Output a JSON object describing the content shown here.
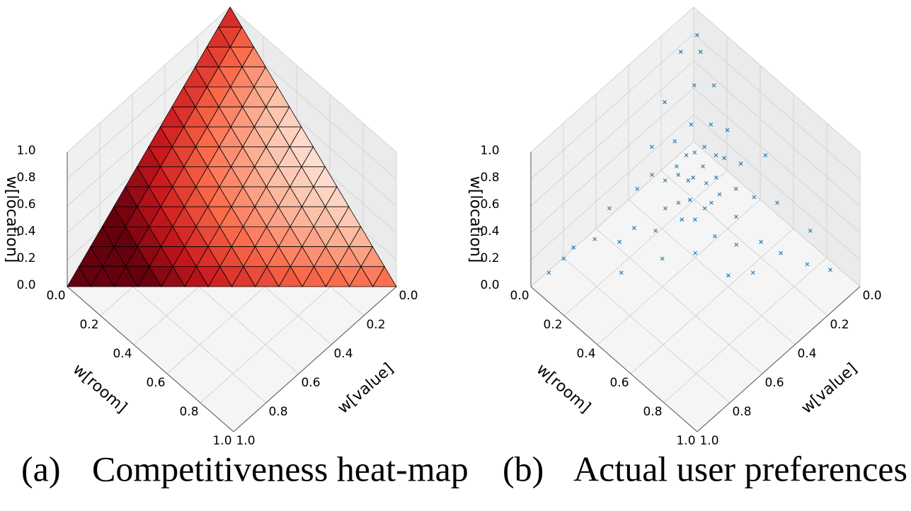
{
  "chart_data": [
    {
      "type": "surface",
      "label": "(a)",
      "caption": "Competitiveness heat-map",
      "xlabel": "w[room]",
      "ylabel": "w[value]",
      "zlabel": "w[location]",
      "xlim": [
        0,
        1
      ],
      "ylim": [
        0,
        1
      ],
      "zlim": [
        0,
        1
      ],
      "xticks": [
        {
          "value": 0,
          "label": "0.0"
        },
        0.2,
        0.4,
        0.6,
        0.8,
        {
          "value": 1,
          "label": "1.0"
        }
      ],
      "yticks": [
        {
          "value": 0,
          "label": "0.0"
        },
        0.2,
        0.4,
        0.6,
        0.8,
        {
          "value": 1,
          "label": "1.0"
        }
      ],
      "zticks": [
        {
          "value": 0,
          "label": "0.0"
        },
        0.2,
        0.4,
        0.6,
        0.8,
        {
          "value": 1,
          "label": "1.0"
        }
      ],
      "subdivisions": 14,
      "colormap": "Reds",
      "edgecolor": "#000000",
      "grid": true
    },
    {
      "type": "scatter3d",
      "label": "(b)",
      "caption": "Actual user preferences",
      "xlabel": "w[room]",
      "ylabel": "w[value]",
      "zlabel": "w[location]",
      "xlim": [
        0,
        1
      ],
      "ylim": [
        0,
        1
      ],
      "zlim": [
        0,
        1
      ],
      "xticks": [
        {
          "value": 0,
          "label": "0.0"
        },
        0.2,
        0.4,
        0.6,
        0.8,
        {
          "value": 1,
          "label": "1.0"
        }
      ],
      "yticks": [
        {
          "value": 0,
          "label": "0.0"
        },
        0.2,
        0.4,
        0.6,
        0.8,
        {
          "value": 1,
          "label": "1.0"
        }
      ],
      "zticks": [
        {
          "value": 0,
          "label": "0.0"
        },
        0.2,
        0.4,
        0.6,
        0.8,
        {
          "value": 1,
          "label": "1.0"
        }
      ],
      "color": "#1f77b4",
      "marker": "x",
      "grid": true,
      "x": [
        0.3,
        0.25,
        0.35,
        0.28,
        0.4,
        0.22,
        0.33,
        0.18,
        0.45,
        0.27,
        0.36,
        0.2,
        0.5,
        0.15,
        0.31,
        0.38,
        0.24,
        0.42,
        0.12,
        0.29,
        0.55,
        0.1,
        0.34,
        0.26,
        0.47,
        0.08,
        0.6,
        0.21,
        0.37,
        0.32,
        0.14,
        0.62,
        0.06,
        0.44,
        0.23,
        0.39,
        0.17,
        0.52,
        0.28,
        0.33,
        0.7,
        0.05,
        0.11,
        0.19,
        0.75,
        0.8,
        0.04,
        0.1,
        0.06,
        0.35,
        0.58,
        0.25,
        0.48,
        0.2,
        0.65,
        0.03,
        0.88,
        0.3,
        0.26,
        0.41
      ],
      "y": [
        0.31,
        0.35,
        0.28,
        0.22,
        0.3,
        0.4,
        0.36,
        0.3,
        0.2,
        0.45,
        0.18,
        0.22,
        0.25,
        0.5,
        0.26,
        0.38,
        0.29,
        0.14,
        0.38,
        0.33,
        0.3,
        0.62,
        0.42,
        0.16,
        0.35,
        0.26,
        0.1,
        0.58,
        0.24,
        0.12,
        0.14,
        0.22,
        0.8,
        0.44,
        0.34,
        0.33,
        0.43,
        0.16,
        0.52,
        0.2,
        0.18,
        0.85,
        0.72,
        0.65,
        0.05,
        0.12,
        0.12,
        0.06,
        0.04,
        0.55,
        0.38,
        0.7,
        0.05,
        0.08,
        0.3,
        0.92,
        0.06,
        0.4,
        0.26,
        0.26
      ],
      "z": [
        0.39,
        0.4,
        0.37,
        0.5,
        0.3,
        0.38,
        0.31,
        0.52,
        0.35,
        0.28,
        0.46,
        0.58,
        0.25,
        0.35,
        0.43,
        0.24,
        0.47,
        0.44,
        0.5,
        0.38,
        0.15,
        0.28,
        0.24,
        0.58,
        0.18,
        0.66,
        0.3,
        0.21,
        0.39,
        0.56,
        0.72,
        0.16,
        0.14,
        0.12,
        0.43,
        0.28,
        0.4,
        0.32,
        0.2,
        0.47,
        0.12,
        0.1,
        0.17,
        0.16,
        0.2,
        0.08,
        0.84,
        0.84,
        0.9,
        0.1,
        0.04,
        0.05,
        0.47,
        0.72,
        0.05,
        0.05,
        0.06,
        0.3,
        0.48,
        0.33
      ]
    }
  ]
}
